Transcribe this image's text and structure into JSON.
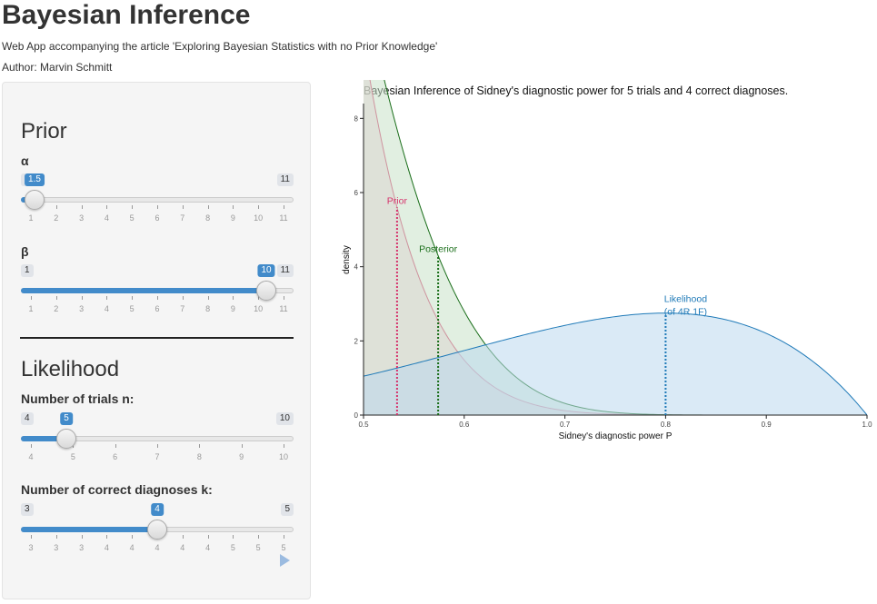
{
  "header": {
    "title": "Bayesian Inference",
    "subtitle": "Web App accompanying the article 'Exploring Bayesian Statistics with no Prior Knowledge'",
    "author": "Author: Marvin Schmitt"
  },
  "sidebar": {
    "prior_title": "Prior",
    "likelihood_title": "Likelihood",
    "sliders": [
      {
        "id": "alpha",
        "label": "α",
        "min_label": "1",
        "max_label": "11",
        "value_label": "1.5",
        "fraction": 0.05,
        "ticks": [
          "1",
          "2",
          "3",
          "4",
          "5",
          "6",
          "7",
          "8",
          "9",
          "10",
          "11"
        ]
      },
      {
        "id": "beta",
        "label": "β",
        "min_label": "1",
        "max_label": "11",
        "value_label": "10",
        "fraction": 0.9,
        "ticks": [
          "1",
          "2",
          "3",
          "4",
          "5",
          "6",
          "7",
          "8",
          "9",
          "10",
          "11"
        ]
      },
      {
        "id": "trials",
        "label": "Number of trials n:",
        "min_label": "4",
        "max_label": "10",
        "value_label": "5",
        "fraction": 0.1667,
        "ticks": [
          "4",
          "5",
          "6",
          "7",
          "8",
          "9",
          "10"
        ]
      },
      {
        "id": "correct",
        "label": "Number of correct diagnoses k:",
        "min_label": "3",
        "max_label": "5",
        "value_label": "4",
        "fraction": 0.5,
        "ticks": [
          "3",
          "3",
          "3",
          "4",
          "4",
          "4",
          "4",
          "4",
          "5",
          "5",
          "5"
        ]
      }
    ]
  },
  "chart_data": {
    "type": "area",
    "title": "Bayesian Inference of Sidney's diagnostic power for 5 trials and 4 correct diagnoses.",
    "xlabel": "Sidney's diagnostic power P",
    "ylabel": "density",
    "xlim": [
      0.5,
      1.0
    ],
    "ylim": [
      0,
      8.4
    ],
    "xticks": [
      "0.5",
      "0.6",
      "0.7",
      "0.8",
      "0.9",
      "1.0"
    ],
    "yticks": [
      "0",
      "2",
      "4",
      "6",
      "8"
    ],
    "series": [
      {
        "name": "Prior",
        "color": "#d6336c",
        "fill": "#f2c9d8",
        "mode": 0.5333,
        "params": {
          "a": 1.5,
          "b": 10
        },
        "annotation": "Prior",
        "peak": 5.6
      },
      {
        "name": "Posterior",
        "color": "#1a6e1a",
        "fill": "#c9e2c9",
        "mode": 0.5741,
        "params": {
          "a": 5.5,
          "b": 11
        },
        "annotation": "Posterior",
        "peak": 4.3
      },
      {
        "name": "Likelihood",
        "color": "#1f7ab8",
        "fill": "#bcd9ef",
        "mode": 0.8,
        "params": {
          "k": 4,
          "n": 5
        },
        "annotation": "Likelihood",
        "annotation2": "(of 4R 1F)",
        "peak": 2.75
      }
    ]
  }
}
